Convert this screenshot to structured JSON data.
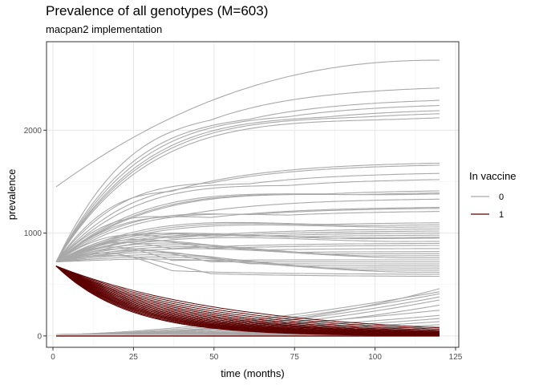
{
  "chart_data": {
    "type": "line",
    "title": "Prevalence of all genotypes (M=603)",
    "subtitle": "macpan2 implementation",
    "xlabel": "time (months)",
    "ylabel": "prevalence",
    "xlim": [
      -2,
      126
    ],
    "ylim": [
      -110,
      2860
    ],
    "xticks": [
      0,
      25,
      50,
      75,
      100,
      125
    ],
    "yticks": [
      0,
      1000,
      2000
    ],
    "grid": true,
    "legend": {
      "title": "In vaccine",
      "placement": "right",
      "entries": [
        {
          "label": "0",
          "color": "#a9a9a9"
        },
        {
          "label": "1",
          "color": "#5c0000"
        }
      ]
    },
    "x_range": [
      1,
      120
    ],
    "series_0_endpoints": [
      2680,
      2410,
      2290,
      2240,
      2190,
      2160,
      2120,
      1680,
      1660,
      1580,
      1520,
      1410,
      1390,
      1380,
      1330,
      1250,
      1240,
      1210,
      1100,
      1080,
      1060,
      1040,
      1020,
      1000,
      980,
      960,
      950,
      920,
      900,
      880,
      850,
      820,
      800,
      780,
      760,
      740,
      720,
      700,
      680,
      660,
      640,
      620,
      600,
      580,
      460,
      430,
      410,
      380,
      350,
      300,
      250,
      200,
      170,
      140,
      110,
      90,
      70,
      50,
      30,
      15,
      5
    ],
    "series_1_start": 680,
    "series_1_end": 0
  }
}
